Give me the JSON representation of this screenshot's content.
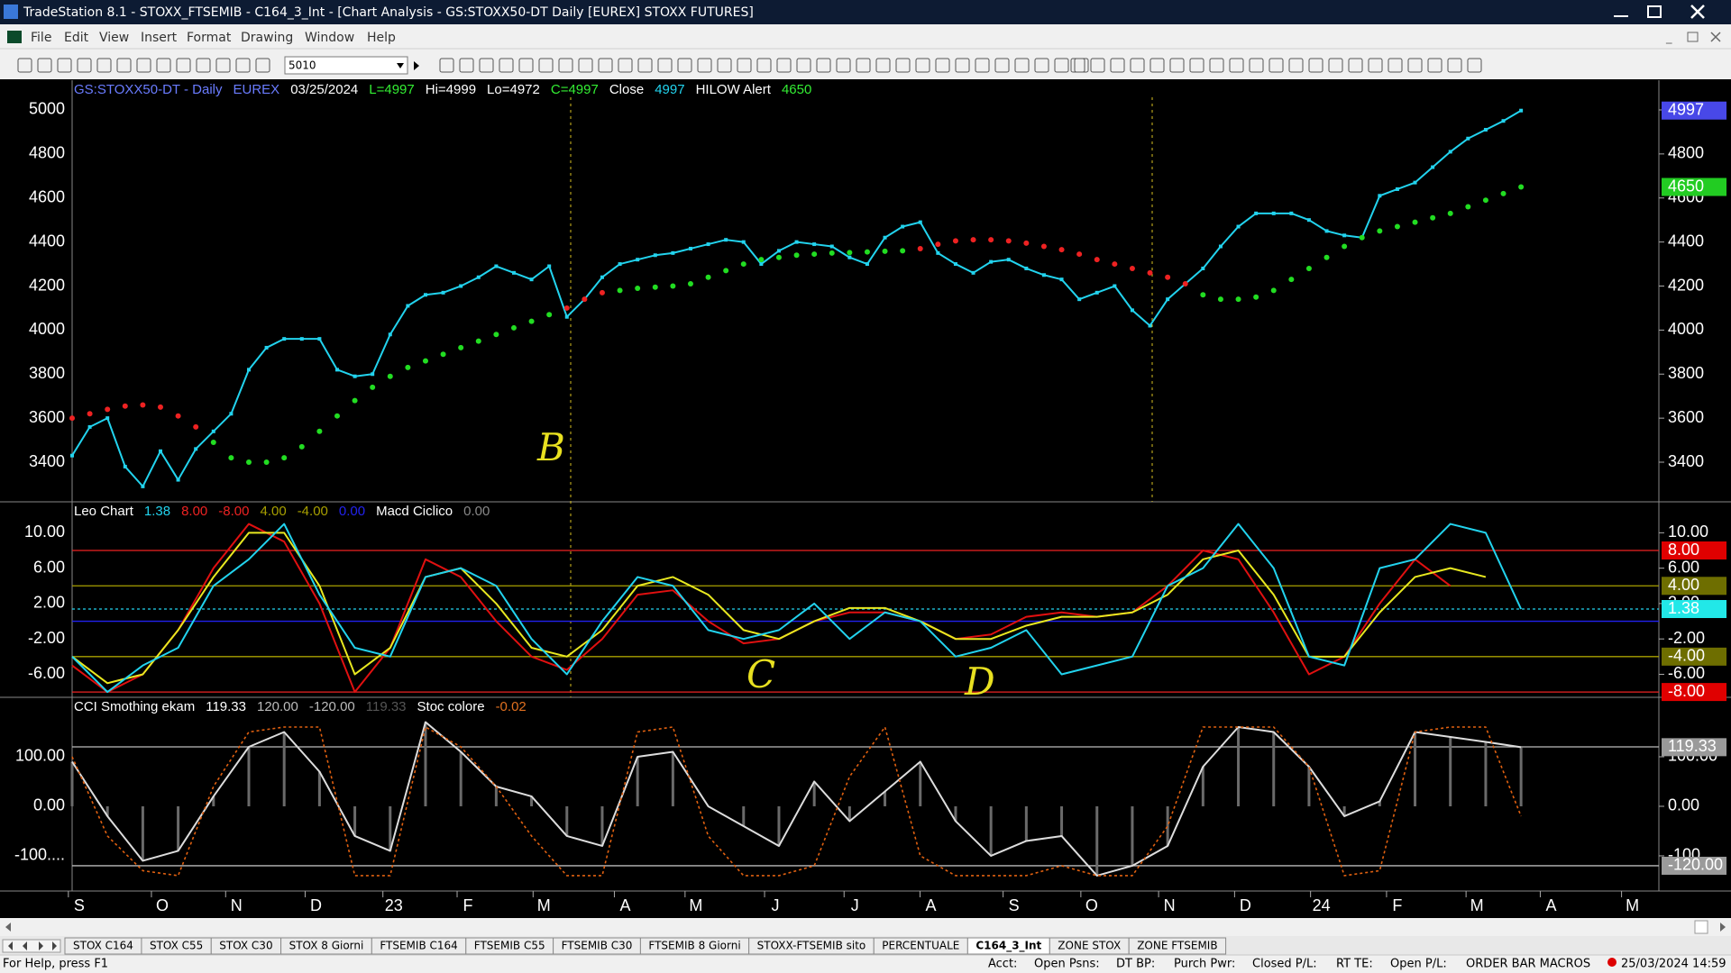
{
  "window": {
    "title": "TradeStation 8.1 - STOXX_FTSEMIB - C164_3_Int - [Chart Analysis - GS:STOXX50-DT  Daily  [EUREX] STOXX FUTURES]"
  },
  "menu": [
    "File",
    "Edit",
    "View",
    "Insert",
    "Format",
    "Drawing",
    "Window",
    "Help"
  ],
  "toolbar": {
    "symbol": "5010"
  },
  "chart_data": [
    {
      "type": "line",
      "header": [
        {
          "text": "GS:STOXX50-DT - Daily",
          "color": "#6a7cff"
        },
        {
          "text": "EUREX",
          "color": "#6a7cff"
        },
        {
          "text": "03/25/2024",
          "color": "#ffffff"
        },
        {
          "text": "L=4997",
          "color": "#33ee33"
        },
        {
          "text": "Hi=4999",
          "color": "#ffffff"
        },
        {
          "text": "Lo=4972",
          "color": "#ffffff"
        },
        {
          "text": "C=4997",
          "color": "#33ee33"
        },
        {
          "text": "Close",
          "color": "#ffffff"
        },
        {
          "value": 4997,
          "color": "#22d3ee",
          "marker_bg": "#4848e8",
          "marker_fg": "#ffffff"
        },
        {
          "text": "HILOW Alert",
          "color": "#ffffff"
        },
        {
          "value": 4650,
          "color": "#33ee33",
          "marker_bg": "#22cc22",
          "marker_fg": "#ffffff"
        }
      ],
      "x": [
        0,
        1,
        2,
        3,
        4,
        5,
        6,
        7,
        8,
        9,
        10,
        11,
        12,
        13,
        14,
        15,
        16,
        17,
        18,
        19,
        20,
        21,
        22,
        23,
        24,
        25,
        26,
        27,
        28,
        29,
        30,
        31,
        32,
        33,
        34,
        35,
        36,
        37,
        38,
        39,
        40,
        41,
        42,
        43,
        44,
        45,
        46,
        47,
        48,
        49,
        50,
        51,
        52,
        53,
        54,
        55,
        56,
        57,
        58,
        59,
        60,
        61,
        62,
        63,
        64,
        65,
        66,
        67,
        68,
        69,
        70,
        71,
        72,
        73,
        74,
        75,
        76,
        77,
        78,
        79,
        80,
        81,
        82
      ],
      "series": [
        {
          "style": "line",
          "color": "#22d3ee",
          "values": [
            3430,
            3560,
            3600,
            3380,
            3290,
            3450,
            3320,
            3460,
            3540,
            3620,
            3820,
            3920,
            3960,
            3960,
            3960,
            3820,
            3790,
            3800,
            3980,
            4110,
            4160,
            4170,
            4200,
            4240,
            4290,
            4260,
            4230,
            4290,
            4060,
            4140,
            4240,
            4300,
            4320,
            4340,
            4350,
            4370,
            4390,
            4410,
            4400,
            4300,
            4360,
            4400,
            4390,
            4380,
            4330,
            4300,
            4420,
            4470,
            4490,
            4350,
            4300,
            4260,
            4310,
            4320,
            4280,
            4250,
            4230,
            4140,
            4170,
            4200,
            4090,
            4020,
            4140,
            4210,
            4280,
            4380,
            4470,
            4530,
            4530,
            4530,
            4500,
            4450,
            4430,
            4420,
            4610,
            4640,
            4670,
            4740,
            4810,
            4870,
            4910,
            4950,
            4997
          ]
        },
        {
          "style": "dots",
          "values": [
            3600,
            3620,
            3640,
            3655,
            3660,
            3650,
            3610,
            3560,
            3490,
            3420,
            3400,
            3400,
            3420,
            3470,
            3540,
            3610,
            3680,
            3740,
            3790,
            3830,
            3860,
            3890,
            3920,
            3950,
            3980,
            4010,
            4040,
            4070,
            4100,
            4140,
            4170,
            4180,
            4190,
            4195,
            4200,
            4210,
            4240,
            4270,
            4300,
            4320,
            4330,
            4340,
            4345,
            4350,
            4352,
            4355,
            4358,
            4360,
            4370,
            4390,
            4405,
            4410,
            4410,
            4405,
            4395,
            4380,
            4365,
            4345,
            4320,
            4300,
            4280,
            4260,
            4240,
            4210,
            4160,
            4140,
            4140,
            4150,
            4180,
            4230,
            4280,
            4330,
            4380,
            4420,
            4450,
            4470,
            4490,
            4510,
            4530,
            4560,
            4590,
            4620,
            4650
          ],
          "colors": [
            "#ee2222",
            "#ee2222",
            "#ee2222",
            "#ee2222",
            "#ee2222",
            "#ee2222",
            "#ee2222",
            "#ee2222",
            "#22dd22",
            "#22dd22",
            "#22dd22",
            "#22dd22",
            "#22dd22",
            "#22dd22",
            "#22dd22",
            "#22dd22",
            "#22dd22",
            "#22dd22",
            "#22dd22",
            "#22dd22",
            "#22dd22",
            "#22dd22",
            "#22dd22",
            "#22dd22",
            "#22dd22",
            "#22dd22",
            "#22dd22",
            "#22dd22",
            "#ee2222",
            "#ee2222",
            "#ee2222",
            "#22dd22",
            "#22dd22",
            "#22dd22",
            "#22dd22",
            "#22dd22",
            "#22dd22",
            "#22dd22",
            "#22dd22",
            "#22dd22",
            "#22dd22",
            "#22dd22",
            "#22dd22",
            "#22dd22",
            "#22dd22",
            "#22dd22",
            "#22dd22",
            "#22dd22",
            "#ee2222",
            "#ee2222",
            "#ee2222",
            "#ee2222",
            "#ee2222",
            "#ee2222",
            "#ee2222",
            "#ee2222",
            "#ee2222",
            "#ee2222",
            "#ee2222",
            "#ee2222",
            "#ee2222",
            "#ee2222",
            "#ee2222",
            "#ee2222",
            "#22dd22",
            "#22dd22",
            "#22dd22",
            "#22dd22",
            "#22dd22",
            "#22dd22",
            "#22dd22",
            "#22dd22",
            "#22dd22",
            "#22dd22",
            "#22dd22",
            "#22dd22",
            "#22dd22",
            "#22dd22",
            "#22dd22",
            "#22dd22",
            "#22dd22",
            "#22dd22",
            "#22dd22"
          ]
        }
      ],
      "xlim": [
        0,
        89.8
      ],
      "ylim": [
        3220,
        5135
      ],
      "yticks": [
        3400,
        3600,
        3800,
        4000,
        4200,
        4400,
        4600,
        4800,
        5000
      ]
    },
    {
      "type": "line",
      "header": [
        {
          "text": "Leo Chart",
          "color": "#ffffff"
        },
        {
          "value": 1.38,
          "label": "1.38",
          "color": "#22d3ee",
          "marker_bg": "#22e8e8",
          "marker_fg": "#000000",
          "line": "dotted"
        },
        {
          "value": 8,
          "label": "8.00",
          "color": "#ee2222",
          "marker_bg": "#e00000",
          "marker_fg": "#ffffff",
          "line": "solid"
        },
        {
          "value": -8,
          "label": "-8.00",
          "color": "#ee2222",
          "marker_bg": "#e00000",
          "marker_fg": "#ffffff",
          "line": "solid"
        },
        {
          "value": 4,
          "label": "4.00",
          "color": "#a8a000",
          "marker_bg": "#6e6e00",
          "marker_fg": "#ffffff",
          "line": "solid"
        },
        {
          "value": -4,
          "label": "-4.00",
          "color": "#a8a000",
          "marker_bg": "#6e6e00",
          "marker_fg": "#ffffff",
          "line": "solid"
        },
        {
          "value": 0,
          "label": "0.00",
          "color": "#2222ee",
          "line": "solid"
        },
        {
          "text": "Macd Ciclico",
          "color": "#ffffff"
        },
        {
          "value": 0,
          "label": "0.00",
          "color": "#888888"
        }
      ],
      "x": [
        0,
        2,
        4,
        6,
        8,
        10,
        12,
        14,
        16,
        18,
        20,
        22,
        24,
        26,
        28,
        30,
        32,
        34,
        36,
        38,
        40,
        42,
        44,
        46,
        48,
        50,
        52,
        54,
        56,
        58,
        60,
        62,
        64,
        66,
        68,
        70,
        72,
        74,
        76,
        78,
        80,
        82
      ],
      "series": [
        {
          "style": "line",
          "color": "#e01010",
          "values": [
            -5,
            -8,
            -6,
            -1,
            6,
            11,
            9,
            2,
            -8,
            -3,
            7,
            5,
            0,
            -4,
            -5.5,
            -2,
            3,
            3.5,
            0,
            -2.5,
            -2,
            0,
            1,
            1,
            0,
            -2,
            -1.5,
            0.5,
            1,
            0.5,
            1,
            4,
            8,
            7,
            1,
            -6,
            -4,
            2,
            7,
            4,
            null,
            null
          ]
        },
        {
          "style": "line",
          "color": "#e8e820",
          "values": [
            -4,
            -7,
            -6,
            -1,
            5,
            10,
            10,
            4,
            -6,
            -3,
            5,
            6,
            2,
            -3,
            -4,
            -1,
            4,
            5,
            3,
            -1,
            -2,
            0,
            1.5,
            1.5,
            0,
            -2,
            -2,
            -0.5,
            0.5,
            0.5,
            1,
            3,
            7,
            8,
            3,
            -4,
            -4,
            1,
            5,
            6,
            5,
            null
          ]
        },
        {
          "style": "line",
          "color": "#22d3ee",
          "values": [
            -4,
            -8,
            -5,
            -3,
            4,
            7,
            11,
            3,
            -3,
            -4,
            5,
            6,
            4,
            -2,
            -6,
            0,
            5,
            4,
            -1,
            -2,
            -1,
            2,
            -2,
            1,
            0,
            -4,
            -3,
            -1,
            -6,
            -5,
            -4,
            4,
            6,
            11,
            6,
            -4,
            -5,
            6,
            7,
            11,
            10,
            1.38
          ]
        }
      ],
      "xlim": [
        0,
        89.8
      ],
      "ylim": [
        -8.6,
        13.5
      ],
      "yticks": [
        {
          "value": 10,
          "label": "10.00"
        },
        {
          "value": 6,
          "label": "6.00"
        },
        {
          "value": 2,
          "label": "2.00"
        },
        {
          "value": -2,
          "label": "-2.00"
        },
        {
          "value": -6,
          "label": "-6.00"
        }
      ]
    },
    {
      "type": "line",
      "header": [
        {
          "text": "CCI Smothing ekam",
          "color": "#ffffff"
        },
        {
          "value": 119.33,
          "label": "119.33",
          "color": "#ffffff",
          "marker_bg": "#9a9a9a",
          "marker_fg": "#000000"
        },
        {
          "value": 120,
          "label": "120.00",
          "color": "#bbbbbb",
          "line": "solid"
        },
        {
          "value": -120,
          "label": "-120.00",
          "color": "#bbbbbb",
          "line": "solid",
          "marker_bg": "#9a9a9a",
          "marker_fg": "#000000"
        },
        {
          "value": 119.33,
          "label": "119.33",
          "color": "#555555"
        },
        {
          "text": "Stoc colore",
          "color": "#ffffff"
        },
        {
          "value": -0.02,
          "label": "-0.02",
          "color": "#e07020"
        }
      ],
      "x": [
        0,
        2,
        4,
        6,
        8,
        10,
        12,
        14,
        16,
        18,
        20,
        22,
        24,
        26,
        28,
        30,
        32,
        34,
        36,
        38,
        40,
        42,
        44,
        46,
        48,
        50,
        52,
        54,
        56,
        58,
        60,
        62,
        64,
        66,
        68,
        70,
        72,
        74,
        76,
        78,
        80,
        82
      ],
      "series": [
        {
          "style": "line",
          "color": "#dddddd",
          "histogram": true,
          "values": [
            90,
            -20,
            -110,
            -90,
            20,
            120,
            150,
            70,
            -60,
            -90,
            170,
            110,
            40,
            20,
            -60,
            -80,
            100,
            110,
            0,
            -40,
            -80,
            50,
            -30,
            30,
            90,
            -30,
            -100,
            -70,
            -60,
            -140,
            -120,
            -80,
            80,
            160,
            150,
            80,
            -20,
            10,
            150,
            140,
            130,
            119.33
          ]
        },
        {
          "style": "line",
          "color": "#e06010",
          "dash": true,
          "values": [
            100,
            -60,
            -130,
            -140,
            40,
            150,
            160,
            160,
            -140,
            -140,
            160,
            120,
            40,
            -60,
            -140,
            -140,
            150,
            160,
            -60,
            -140,
            -140,
            -120,
            60,
            160,
            -100,
            -140,
            -140,
            -140,
            -120,
            -140,
            -140,
            -40,
            160,
            160,
            160,
            80,
            -140,
            -130,
            150,
            160,
            160,
            -20
          ]
        }
      ],
      "xlim": [
        0,
        89.8
      ],
      "ylim": [
        -171,
        220
      ],
      "yticks": [
        {
          "value": 100,
          "label": "100.00"
        },
        {
          "value": 0,
          "label": "0.00"
        },
        {
          "value": -100,
          "label": "-100...."
        }
      ],
      "xticks": [
        {
          "value": 0.4,
          "label": "S"
        },
        {
          "value": 5.1,
          "label": "O"
        },
        {
          "value": 9.3,
          "label": "N"
        },
        {
          "value": 13.8,
          "label": "D"
        },
        {
          "value": 18.2,
          "label": "23"
        },
        {
          "value": 22.4,
          "label": "F"
        },
        {
          "value": 26.7,
          "label": "M"
        },
        {
          "value": 31.3,
          "label": "A"
        },
        {
          "value": 35.3,
          "label": "M"
        },
        {
          "value": 39.8,
          "label": "J"
        },
        {
          "value": 44.3,
          "label": "J"
        },
        {
          "value": 48.6,
          "label": "A"
        },
        {
          "value": 53.3,
          "label": "S"
        },
        {
          "value": 57.7,
          "label": "O"
        },
        {
          "value": 62.1,
          "label": "N"
        },
        {
          "value": 66.4,
          "label": "D"
        },
        {
          "value": 70.7,
          "label": "24"
        },
        {
          "value": 75.0,
          "label": "F"
        },
        {
          "value": 79.5,
          "label": "M"
        },
        {
          "value": 83.7,
          "label": "A"
        },
        {
          "value": 88.3,
          "label": "M"
        }
      ]
    }
  ],
  "annotations": [
    "B",
    "C",
    "D"
  ],
  "tabs": [
    {
      "label": "STOX C164"
    },
    {
      "label": "STOX C55"
    },
    {
      "label": "STOX  C30"
    },
    {
      "label": "STOX  8 Giorni"
    },
    {
      "label": "FTSEMIB C164"
    },
    {
      "label": "FTSEMIB C55"
    },
    {
      "label": "FTSEMIB C30"
    },
    {
      "label": "FTSEMIB  8 Giorni"
    },
    {
      "label": "STOXX-FTSEMIB sito"
    },
    {
      "label": "PERCENTUALE"
    },
    {
      "label": "C164_3_Int",
      "active": true
    },
    {
      "label": "ZONE STOX"
    },
    {
      "label": "ZONE FTSEMIB"
    }
  ],
  "status": [
    {
      "text": "For Help, press F1",
      "color": "#000000"
    },
    {
      "text": "Acct:",
      "color": "#000000"
    },
    {
      "text": "Open Psns:",
      "color": "#000000"
    },
    {
      "text": "DT BP:",
      "color": "#000000"
    },
    {
      "text": "Purch Pwr:",
      "color": "#000000"
    },
    {
      "text": "Closed P/L:",
      "color": "#000000"
    },
    {
      "text": "RT TE:",
      "color": "#000000"
    },
    {
      "text": "Open P/L:",
      "color": "#000000"
    },
    {
      "text": "ORDER BAR  MACROS",
      "color": "#0a9a2a"
    },
    {
      "text": "25/03/2024 14:59",
      "color": "#000000"
    }
  ]
}
